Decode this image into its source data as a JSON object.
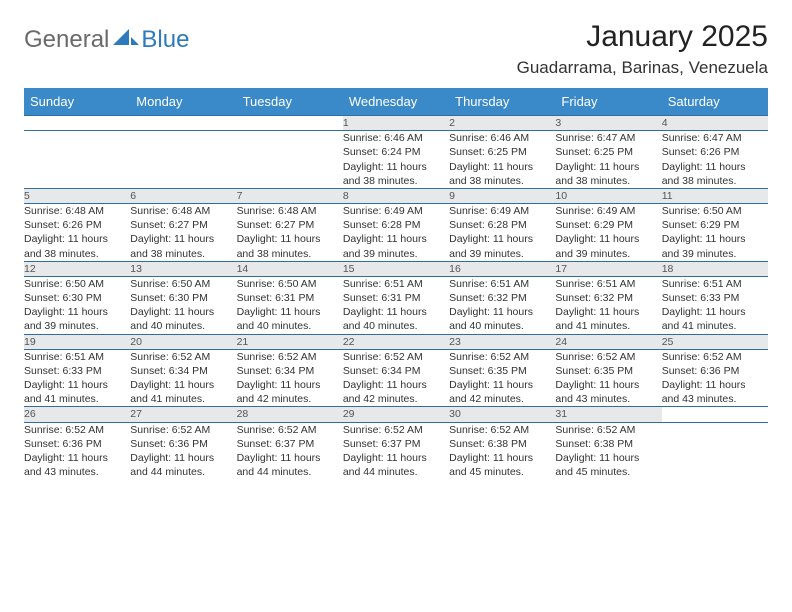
{
  "logo": {
    "text_a": "General",
    "text_b": "Blue"
  },
  "title": "January 2025",
  "location": "Guadarrama, Barinas, Venezuela",
  "day_headers": [
    "Sunday",
    "Monday",
    "Tuesday",
    "Wednesday",
    "Thursday",
    "Friday",
    "Saturday"
  ],
  "colors": {
    "header_bg": "#3a89c9",
    "header_text": "#ffffff",
    "row_border": "#2f6da3",
    "daynum_bg": "#e7e8ea",
    "logo_gray": "#6a6a6a",
    "logo_blue": "#2f79bd"
  },
  "weeks": [
    [
      null,
      null,
      null,
      {
        "n": "1",
        "sr": "6:46 AM",
        "ss": "6:24 PM",
        "dl": "11 hours and 38 minutes."
      },
      {
        "n": "2",
        "sr": "6:46 AM",
        "ss": "6:25 PM",
        "dl": "11 hours and 38 minutes."
      },
      {
        "n": "3",
        "sr": "6:47 AM",
        "ss": "6:25 PM",
        "dl": "11 hours and 38 minutes."
      },
      {
        "n": "4",
        "sr": "6:47 AM",
        "ss": "6:26 PM",
        "dl": "11 hours and 38 minutes."
      }
    ],
    [
      {
        "n": "5",
        "sr": "6:48 AM",
        "ss": "6:26 PM",
        "dl": "11 hours and 38 minutes."
      },
      {
        "n": "6",
        "sr": "6:48 AM",
        "ss": "6:27 PM",
        "dl": "11 hours and 38 minutes."
      },
      {
        "n": "7",
        "sr": "6:48 AM",
        "ss": "6:27 PM",
        "dl": "11 hours and 38 minutes."
      },
      {
        "n": "8",
        "sr": "6:49 AM",
        "ss": "6:28 PM",
        "dl": "11 hours and 39 minutes."
      },
      {
        "n": "9",
        "sr": "6:49 AM",
        "ss": "6:28 PM",
        "dl": "11 hours and 39 minutes."
      },
      {
        "n": "10",
        "sr": "6:49 AM",
        "ss": "6:29 PM",
        "dl": "11 hours and 39 minutes."
      },
      {
        "n": "11",
        "sr": "6:50 AM",
        "ss": "6:29 PM",
        "dl": "11 hours and 39 minutes."
      }
    ],
    [
      {
        "n": "12",
        "sr": "6:50 AM",
        "ss": "6:30 PM",
        "dl": "11 hours and 39 minutes."
      },
      {
        "n": "13",
        "sr": "6:50 AM",
        "ss": "6:30 PM",
        "dl": "11 hours and 40 minutes."
      },
      {
        "n": "14",
        "sr": "6:50 AM",
        "ss": "6:31 PM",
        "dl": "11 hours and 40 minutes."
      },
      {
        "n": "15",
        "sr": "6:51 AM",
        "ss": "6:31 PM",
        "dl": "11 hours and 40 minutes."
      },
      {
        "n": "16",
        "sr": "6:51 AM",
        "ss": "6:32 PM",
        "dl": "11 hours and 40 minutes."
      },
      {
        "n": "17",
        "sr": "6:51 AM",
        "ss": "6:32 PM",
        "dl": "11 hours and 41 minutes."
      },
      {
        "n": "18",
        "sr": "6:51 AM",
        "ss": "6:33 PM",
        "dl": "11 hours and 41 minutes."
      }
    ],
    [
      {
        "n": "19",
        "sr": "6:51 AM",
        "ss": "6:33 PM",
        "dl": "11 hours and 41 minutes."
      },
      {
        "n": "20",
        "sr": "6:52 AM",
        "ss": "6:34 PM",
        "dl": "11 hours and 41 minutes."
      },
      {
        "n": "21",
        "sr": "6:52 AM",
        "ss": "6:34 PM",
        "dl": "11 hours and 42 minutes."
      },
      {
        "n": "22",
        "sr": "6:52 AM",
        "ss": "6:34 PM",
        "dl": "11 hours and 42 minutes."
      },
      {
        "n": "23",
        "sr": "6:52 AM",
        "ss": "6:35 PM",
        "dl": "11 hours and 42 minutes."
      },
      {
        "n": "24",
        "sr": "6:52 AM",
        "ss": "6:35 PM",
        "dl": "11 hours and 43 minutes."
      },
      {
        "n": "25",
        "sr": "6:52 AM",
        "ss": "6:36 PM",
        "dl": "11 hours and 43 minutes."
      }
    ],
    [
      {
        "n": "26",
        "sr": "6:52 AM",
        "ss": "6:36 PM",
        "dl": "11 hours and 43 minutes."
      },
      {
        "n": "27",
        "sr": "6:52 AM",
        "ss": "6:36 PM",
        "dl": "11 hours and 44 minutes."
      },
      {
        "n": "28",
        "sr": "6:52 AM",
        "ss": "6:37 PM",
        "dl": "11 hours and 44 minutes."
      },
      {
        "n": "29",
        "sr": "6:52 AM",
        "ss": "6:37 PM",
        "dl": "11 hours and 44 minutes."
      },
      {
        "n": "30",
        "sr": "6:52 AM",
        "ss": "6:38 PM",
        "dl": "11 hours and 45 minutes."
      },
      {
        "n": "31",
        "sr": "6:52 AM",
        "ss": "6:38 PM",
        "dl": "11 hours and 45 minutes."
      },
      null
    ]
  ],
  "labels": {
    "sunrise": "Sunrise:",
    "sunset": "Sunset:",
    "daylight": "Daylight:"
  }
}
